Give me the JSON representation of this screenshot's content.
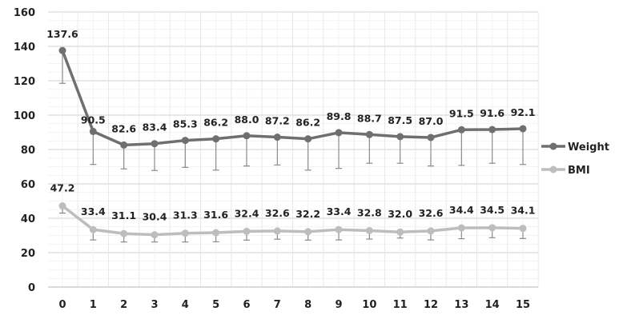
{
  "chart_data": {
    "type": "line",
    "title": "",
    "xlabel": "",
    "ylabel": "",
    "x": [
      0,
      1,
      2,
      3,
      4,
      5,
      6,
      7,
      8,
      9,
      10,
      11,
      12,
      13,
      14,
      15
    ],
    "ylim": [
      0,
      160
    ],
    "yticks": [
      0,
      20,
      40,
      60,
      80,
      100,
      120,
      140,
      160
    ],
    "grid": true,
    "legend_position": "right",
    "series": [
      {
        "name": "Weight",
        "color": "#6f6f6f",
        "values": [
          137.6,
          90.5,
          82.6,
          83.4,
          85.3,
          86.2,
          88.0,
          87.2,
          86.2,
          89.8,
          88.7,
          87.5,
          87.0,
          91.5,
          91.6,
          92.1
        ],
        "labels": [
          "137.6",
          "90.5",
          "82.6",
          "83.4",
          "85.3",
          "86.2",
          "88.0",
          "87.2",
          "86.2",
          "89.8",
          "88.7",
          "87.5",
          "87.0",
          "91.5",
          "91.6",
          "92.1"
        ],
        "error_lower": [
          118.5,
          71.3,
          68.7,
          67.8,
          69.6,
          68.0,
          70.4,
          71.0,
          68.0,
          69.0,
          72.0,
          72.0,
          70.4,
          70.8,
          72.0,
          71.3
        ]
      },
      {
        "name": "BMI",
        "color": "#bdbdbd",
        "values": [
          47.2,
          33.4,
          31.1,
          30.4,
          31.3,
          31.6,
          32.4,
          32.6,
          32.2,
          33.4,
          32.8,
          32.0,
          32.6,
          34.4,
          34.5,
          34.1
        ],
        "labels": [
          "47.2",
          "33.4",
          "31.1",
          "30.4",
          "31.3",
          "31.6",
          "32.4",
          "32.6",
          "32.2",
          "33.4",
          "32.8",
          "32.0",
          "32.6",
          "34.4",
          "34.5",
          "34.1"
        ],
        "error_lower": [
          43.0,
          27.4,
          26.2,
          26.2,
          26.2,
          26.3,
          27.3,
          27.8,
          27.3,
          27.4,
          27.9,
          28.5,
          27.4,
          28.1,
          28.7,
          28.2
        ]
      }
    ]
  }
}
